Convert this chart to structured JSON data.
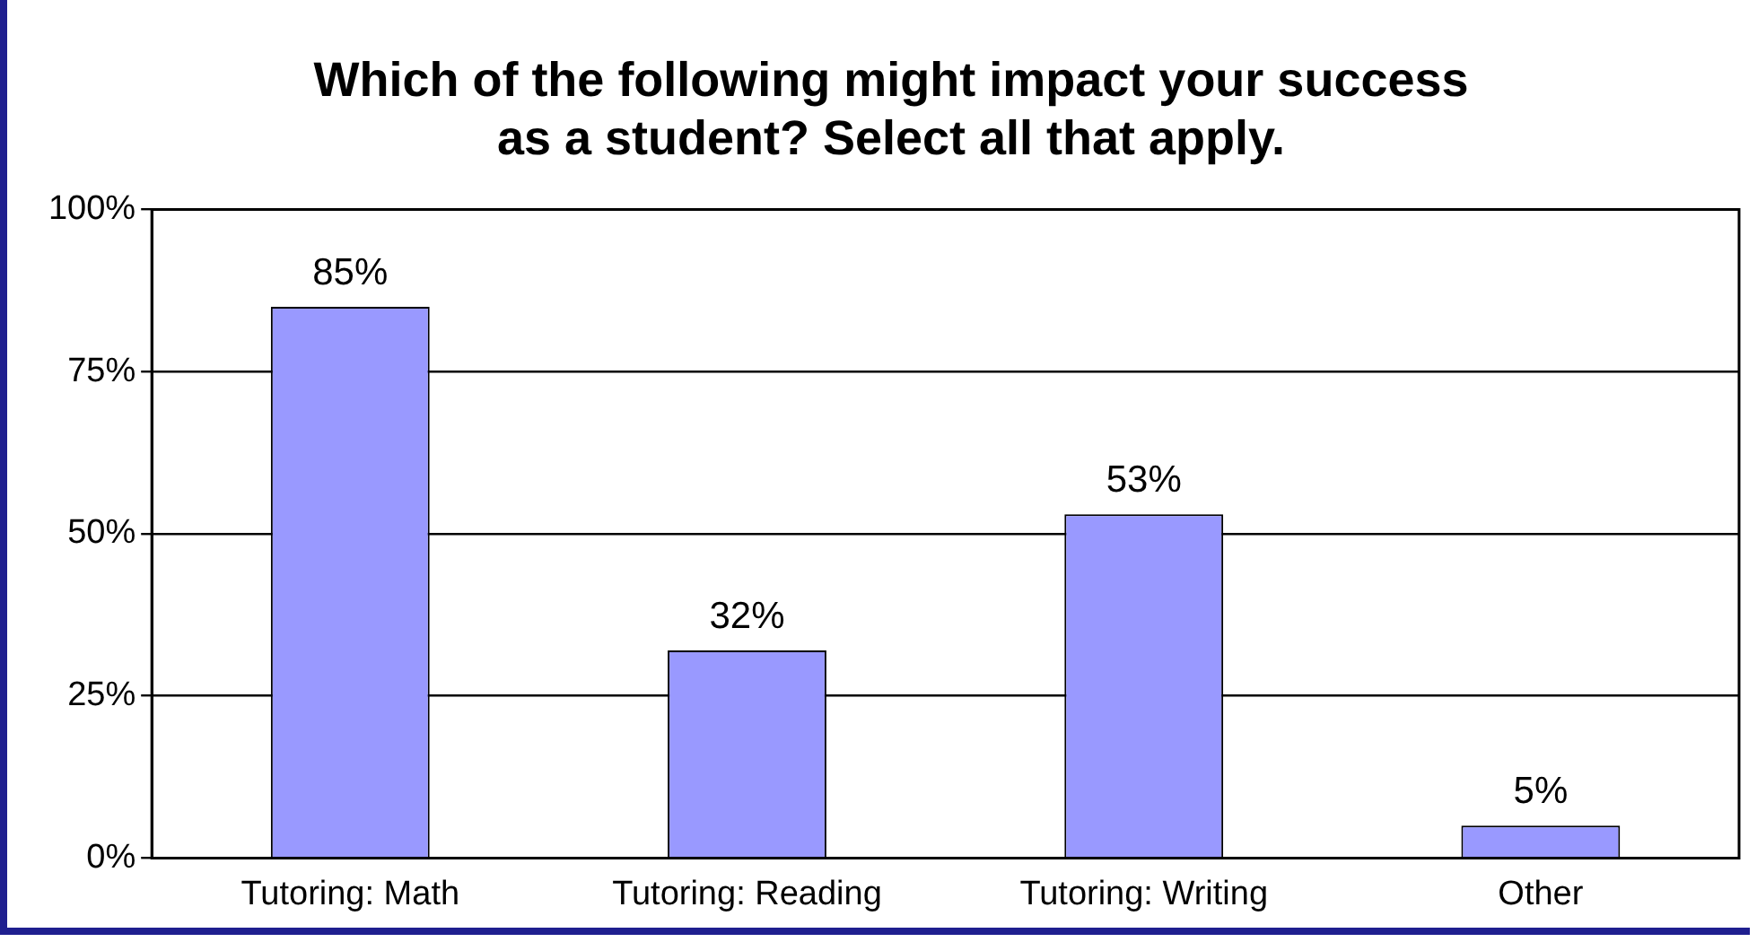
{
  "chart_data": {
    "type": "bar",
    "title": "Which of the following might impact your success\nas a student? Select all that apply.",
    "categories": [
      "Tutoring: Math",
      "Tutoring: Reading",
      "Tutoring: Writing",
      "Other"
    ],
    "values": [
      85,
      32,
      53,
      5
    ],
    "value_labels": [
      "85%",
      "32%",
      "53%",
      "5%"
    ],
    "color": "#9999ff",
    "ylim": [
      0,
      100
    ],
    "yticks": [
      {
        "value": 0,
        "label": "0%"
      },
      {
        "value": 25,
        "label": "25%"
      },
      {
        "value": 50,
        "label": "50%"
      },
      {
        "value": 75,
        "label": "75%"
      },
      {
        "value": 100,
        "label": "100%"
      }
    ],
    "grid": "y",
    "legend": false
  }
}
